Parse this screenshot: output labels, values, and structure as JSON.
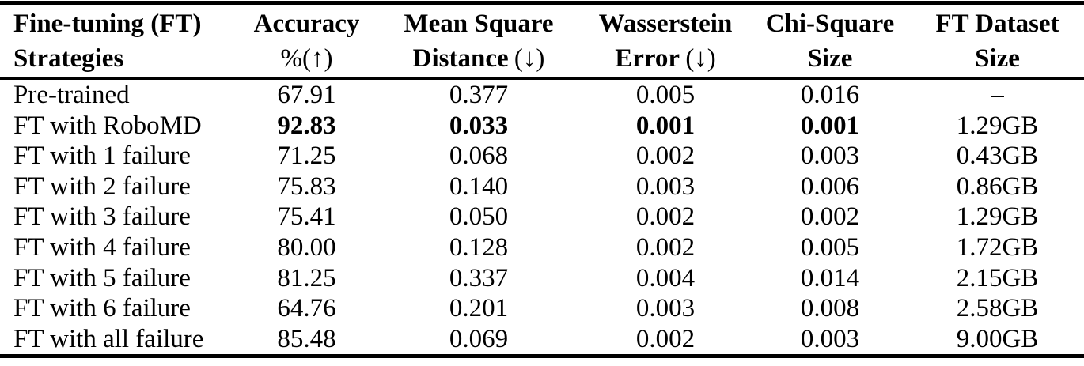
{
  "theme": {
    "background_color": "#ffffff",
    "text_color": "#000000",
    "rule_color": "#000000"
  },
  "table": {
    "field_order": [
      "strategy",
      "accuracy",
      "msd",
      "wasserstein",
      "chi_square",
      "dataset_size"
    ],
    "columns": [
      {
        "id": "strategy",
        "line1": "Fine-tuning (FT)",
        "line2_bold": "Strategies",
        "line2_math": ""
      },
      {
        "id": "accuracy",
        "line1": "Accuracy",
        "line2_bold": "",
        "line2_math": "%(↑)"
      },
      {
        "id": "msd",
        "line1": "Mean Square",
        "line2_bold": "Distance",
        "line2_math": "(↓)"
      },
      {
        "id": "wasserstein",
        "line1": "Wasserstein",
        "line2_bold": "Error",
        "line2_math": "(↓)"
      },
      {
        "id": "chi_square",
        "line1": "Chi-Square",
        "line2_bold": "Size",
        "line2_math": ""
      },
      {
        "id": "dataset_size",
        "line1": "FT Dataset",
        "line2_bold": "Size",
        "line2_math": ""
      }
    ],
    "rows": [
      {
        "strategy": "Pre-trained",
        "accuracy": "67.91",
        "msd": "0.377",
        "wasserstein": "0.005",
        "chi_square": "0.016",
        "dataset_size": "–",
        "bold_fields": []
      },
      {
        "strategy": "FT with RoboMD",
        "accuracy": "92.83",
        "msd": "0.033",
        "wasserstein": "0.001",
        "chi_square": "0.001",
        "dataset_size": "1.29GB",
        "bold_fields": [
          "accuracy",
          "msd",
          "wasserstein",
          "chi_square"
        ]
      },
      {
        "strategy": "FT with 1 failure",
        "accuracy": "71.25",
        "msd": "0.068",
        "wasserstein": "0.002",
        "chi_square": "0.003",
        "dataset_size": "0.43GB",
        "bold_fields": []
      },
      {
        "strategy": "FT with 2 failure",
        "accuracy": "75.83",
        "msd": "0.140",
        "wasserstein": "0.003",
        "chi_square": "0.006",
        "dataset_size": "0.86GB",
        "bold_fields": []
      },
      {
        "strategy": "FT with 3 failure",
        "accuracy": "75.41",
        "msd": "0.050",
        "wasserstein": "0.002",
        "chi_square": "0.002",
        "dataset_size": "1.29GB",
        "bold_fields": []
      },
      {
        "strategy": "FT with 4 failure",
        "accuracy": "80.00",
        "msd": "0.128",
        "wasserstein": "0.002",
        "chi_square": "0.005",
        "dataset_size": "1.72GB",
        "bold_fields": []
      },
      {
        "strategy": "FT with 5 failure",
        "accuracy": "81.25",
        "msd": "0.337",
        "wasserstein": "0.004",
        "chi_square": "0.014",
        "dataset_size": "2.15GB",
        "bold_fields": []
      },
      {
        "strategy": "FT with 6 failure",
        "accuracy": "64.76",
        "msd": "0.201",
        "wasserstein": "0.003",
        "chi_square": "0.008",
        "dataset_size": "2.58GB",
        "bold_fields": []
      },
      {
        "strategy": "FT with all failure",
        "accuracy": "85.48",
        "msd": "0.069",
        "wasserstein": "0.002",
        "chi_square": "0.003",
        "dataset_size": "9.00GB",
        "bold_fields": []
      }
    ]
  }
}
